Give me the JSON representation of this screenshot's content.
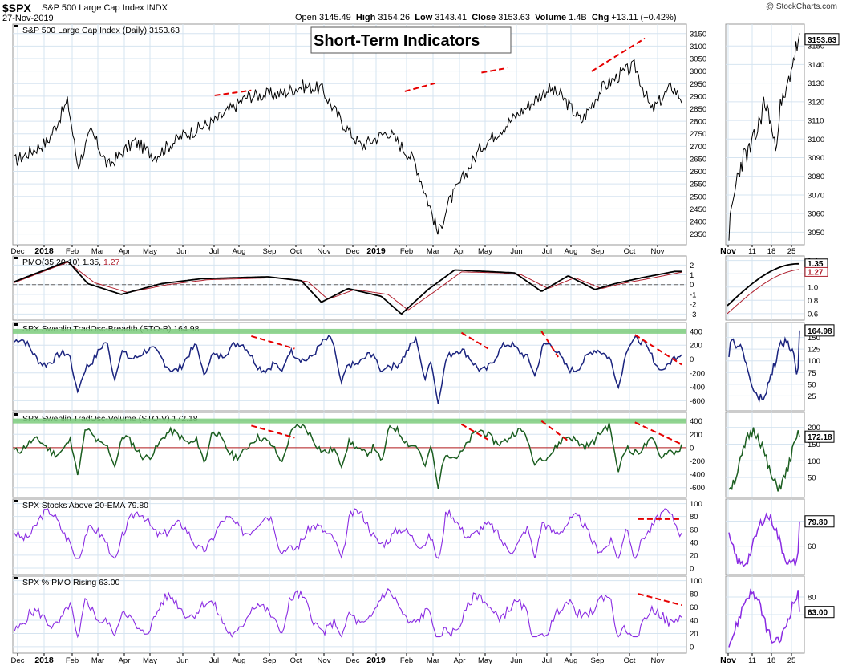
{
  "header": {
    "symbol": "$SPX",
    "name": "S&P 500 Large Cap Index INDX",
    "date": "27-Nov-2019",
    "open_label": "Open",
    "open": "3145.49",
    "high_label": "High",
    "high": "3154.26",
    "low_label": "Low",
    "low": "3143.41",
    "close_label": "Close",
    "close": "3153.63",
    "volume_label": "Volume",
    "volume": "1.4B",
    "chg_label": "Chg",
    "chg": "+13.11 (+0.42%)",
    "watermark": "@ StockCharts.com"
  },
  "overlay_title": "Short-Term Indicators",
  "colors": {
    "grid": "#d6e4f0",
    "price": "#000000",
    "pmo_fast": "#000000",
    "pmo_signal": "#b0202e",
    "breadth": "#1a237e",
    "volume": "#1b5e20",
    "stocks": "#8a2be2",
    "zero_line": "#b71c1c",
    "band": "#7ccd7c",
    "divergence": "#e60000"
  },
  "x_axis": {
    "months": [
      "Dec",
      "2018",
      "Feb",
      "Mar",
      "Apr",
      "May",
      "Jun",
      "Jul",
      "Aug",
      "Sep",
      "Oct",
      "Nov",
      "Dec",
      "2019",
      "Feb",
      "Mar",
      "Apr",
      "May",
      "Jun",
      "Jul",
      "Aug",
      "Sep",
      "Oct",
      "Nov"
    ],
    "side_ticks": [
      "Nov",
      "11",
      "18",
      "25"
    ]
  },
  "chart_data": [
    {
      "type": "line",
      "title": "S&P 500 Large Cap Index (Daily) 3153.63",
      "ylim": [
        2320,
        3175
      ],
      "ticks": [
        "3150",
        "3100",
        "3050",
        "3000",
        "2950",
        "2900",
        "2850",
        "2800",
        "2750",
        "2700",
        "2650",
        "2600",
        "2550",
        "2500",
        "2450",
        "2400",
        "2350"
      ],
      "series": [
        {
          "name": "$SPX",
          "anchors": [
            [
              0,
              2640
            ],
            [
              0.05,
              2720
            ],
            [
              0.08,
              2880
            ],
            [
              0.095,
              2620
            ],
            [
              0.115,
              2760
            ],
            [
              0.14,
              2620
            ],
            [
              0.18,
              2720
            ],
            [
              0.21,
              2660
            ],
            [
              0.25,
              2740
            ],
            [
              0.3,
              2800
            ],
            [
              0.35,
              2900
            ],
            [
              0.4,
              2910
            ],
            [
              0.43,
              2940
            ],
            [
              0.46,
              2930
            ],
            [
              0.49,
              2800
            ],
            [
              0.52,
              2700
            ],
            [
              0.56,
              2760
            ],
            [
              0.6,
              2640
            ],
            [
              0.625,
              2440
            ],
            [
              0.635,
              2350
            ],
            [
              0.65,
              2470
            ],
            [
              0.7,
              2700
            ],
            [
              0.76,
              2840
            ],
            [
              0.8,
              2930
            ],
            [
              0.82,
              2900
            ],
            [
              0.85,
              2800
            ],
            [
              0.88,
              2930
            ],
            [
              0.91,
              2990
            ],
            [
              0.93,
              3020
            ],
            [
              0.955,
              2840
            ],
            [
              0.985,
              2940
            ],
            [
              1.0,
              2890
            ]
          ]
        }
      ],
      "side": {
        "ylim": [
          3045,
          3160
        ],
        "ticks": [
          "3150",
          "3140",
          "3130",
          "3120",
          "3110",
          "3100",
          "3090",
          "3080",
          "3070",
          "3060",
          "3050"
        ],
        "last": "3153.63",
        "anchors": [
          [
            0,
            3050
          ],
          [
            0.06,
            3066
          ],
          [
            0.12,
            3080
          ],
          [
            0.2,
            3090
          ],
          [
            0.3,
            3094
          ],
          [
            0.4,
            3104
          ],
          [
            0.5,
            3120
          ],
          [
            0.58,
            3112
          ],
          [
            0.65,
            3094
          ],
          [
            0.72,
            3116
          ],
          [
            0.8,
            3122
          ],
          [
            0.88,
            3138
          ],
          [
            0.95,
            3148
          ],
          [
            1.0,
            3153.63
          ]
        ]
      },
      "divergences": [
        [
          0.3,
          2903,
          0.355,
          2923
        ],
        [
          0.585,
          2919,
          0.63,
          2951
        ],
        [
          0.7,
          2994,
          0.74,
          3013
        ],
        [
          0.865,
          2999,
          0.945,
          3131
        ]
      ]
    },
    {
      "type": "line",
      "title": "PMO(35,20,10) 1.35,",
      "title2": "1.27",
      "ylim": [
        -3.3,
        2.6
      ],
      "ticks": [
        "2",
        "1",
        "0",
        "-1",
        "-2",
        "-3"
      ],
      "series": [
        {
          "name": "PMO",
          "anchors": [
            [
              0,
              0.3
            ],
            [
              0.08,
              2.4
            ],
            [
              0.11,
              0.1
            ],
            [
              0.16,
              -1.0
            ],
            [
              0.22,
              0.1
            ],
            [
              0.28,
              0.6
            ],
            [
              0.38,
              0.8
            ],
            [
              0.43,
              0.4
            ],
            [
              0.46,
              -1.8
            ],
            [
              0.5,
              -0.4
            ],
            [
              0.55,
              -1.2
            ],
            [
              0.58,
              -3.0
            ],
            [
              0.62,
              -0.5
            ],
            [
              0.66,
              1.5
            ],
            [
              0.72,
              1.3
            ],
            [
              0.75,
              1.2
            ],
            [
              0.79,
              -0.7
            ],
            [
              0.83,
              0.9
            ],
            [
              0.87,
              -0.5
            ],
            [
              0.9,
              0.1
            ],
            [
              0.94,
              0.7
            ],
            [
              0.99,
              1.35
            ],
            [
              1.0,
              1.35
            ]
          ]
        },
        {
          "name": "Signal",
          "anchors": [
            [
              0,
              0.2
            ],
            [
              0.08,
              2.3
            ],
            [
              0.12,
              0.2
            ],
            [
              0.17,
              -0.8
            ],
            [
              0.23,
              0.0
            ],
            [
              0.29,
              0.5
            ],
            [
              0.39,
              0.7
            ],
            [
              0.44,
              0.3
            ],
            [
              0.47,
              -1.5
            ],
            [
              0.51,
              -0.5
            ],
            [
              0.56,
              -1.0
            ],
            [
              0.59,
              -2.6
            ],
            [
              0.63,
              -0.7
            ],
            [
              0.67,
              1.3
            ],
            [
              0.73,
              1.2
            ],
            [
              0.76,
              1.0
            ],
            [
              0.8,
              -0.4
            ],
            [
              0.84,
              0.7
            ],
            [
              0.88,
              -0.4
            ],
            [
              0.91,
              0.1
            ],
            [
              0.95,
              0.6
            ],
            [
              1.0,
              1.27
            ]
          ]
        }
      ],
      "side": {
        "ylim": [
          0.55,
          1.42
        ],
        "ticks": [
          "1.4",
          "1.2",
          "1.0",
          "0.8",
          "0.6"
        ],
        "last": [
          "1.35",
          "1.27"
        ]
      }
    },
    {
      "type": "line",
      "title": "SPX Swenlin TradOsc-Breadth (STO-B) 164.98",
      "ylim": [
        -700,
        480
      ],
      "ticks": [
        "400",
        "200",
        "0",
        "-200",
        "-400",
        "-600"
      ],
      "series": [
        {
          "name": "STO-B",
          "seed": 7,
          "base": 60,
          "amp": 210,
          "valley": [
            [
              0.095,
              -480
            ],
            [
              0.15,
              -320
            ],
            [
              0.285,
              -260
            ],
            [
              0.4,
              -200
            ],
            [
              0.49,
              -350
            ],
            [
              0.55,
              -200
            ],
            [
              0.615,
              -320
            ],
            [
              0.635,
              -650
            ],
            [
              0.78,
              -240
            ],
            [
              0.905,
              -420
            ],
            [
              0.97,
              -160
            ]
          ]
        }
      ],
      "side": {
        "ylim": [
          0,
          175
        ],
        "ticks": [
          "150",
          "125",
          "100",
          "75",
          "50",
          "25"
        ],
        "last": "164.98"
      },
      "divergences": [
        [
          0.355,
          330,
          0.42,
          150
        ],
        [
          0.67,
          380,
          0.71,
          150
        ],
        [
          0.79,
          400,
          0.815,
          30
        ],
        [
          0.93,
          350,
          1.0,
          -80
        ]
      ]
    },
    {
      "type": "line",
      "title": "SPX Swenlin TradOsc-Volume (STO-V) 172.18",
      "ylim": [
        -700,
        480
      ],
      "ticks": [
        "400",
        "200",
        "0",
        "-200",
        "-400",
        "-600"
      ],
      "series": [
        {
          "name": "STO-V",
          "seed": 11,
          "base": 90,
          "amp": 220,
          "valley": [
            [
              0.095,
              -430
            ],
            [
              0.15,
              -300
            ],
            [
              0.285,
              -250
            ],
            [
              0.4,
              -230
            ],
            [
              0.49,
              -300
            ],
            [
              0.55,
              -230
            ],
            [
              0.615,
              -300
            ],
            [
              0.635,
              -620
            ],
            [
              0.78,
              -260
            ],
            [
              0.905,
              -380
            ],
            [
              0.97,
              -170
            ]
          ]
        }
      ],
      "side": {
        "ylim": [
          0,
          235
        ],
        "ticks": [
          "200",
          "150",
          "100",
          "50"
        ],
        "last": "172.18"
      },
      "divergences": [
        [
          0.355,
          330,
          0.42,
          150
        ],
        [
          0.67,
          350,
          0.71,
          120
        ],
        [
          0.79,
          400,
          0.83,
          100
        ],
        [
          0.93,
          380,
          1.0,
          50
        ]
      ]
    },
    {
      "type": "line",
      "title": "SPX Stocks Above 20-EMA 79.80",
      "ylim": [
        -5,
        102
      ],
      "ticks": [
        "100",
        "80",
        "60",
        "40",
        "20",
        "0"
      ],
      "series": [
        {
          "name": "Above 20-EMA",
          "seed": 3,
          "base": 58,
          "amp": 28,
          "valley": [
            [
              0.095,
              5
            ],
            [
              0.15,
              12
            ],
            [
              0.4,
              20
            ],
            [
              0.49,
              15
            ],
            [
              0.635,
              3
            ],
            [
              0.78,
              12
            ],
            [
              0.905,
              8
            ],
            [
              0.93,
              10
            ]
          ]
        }
      ],
      "side": {
        "ylim": [
          40,
          95
        ],
        "ticks": [
          "80",
          "60"
        ],
        "last": "79.80"
      },
      "divergences": [
        [
          0.935,
          76,
          1.0,
          76
        ]
      ]
    },
    {
      "type": "line",
      "title": "SPX % PMO Rising 63.00",
      "ylim": [
        -5,
        102
      ],
      "ticks": [
        "100",
        "80",
        "60",
        "40",
        "20",
        "0"
      ],
      "series": [
        {
          "name": "% PMO Rising",
          "seed": 5,
          "base": 50,
          "amp": 30,
          "valley": [
            [
              0.095,
              5
            ],
            [
              0.15,
              15
            ],
            [
              0.4,
              18
            ],
            [
              0.49,
              12
            ],
            [
              0.635,
              3
            ],
            [
              0.78,
              10
            ],
            [
              0.905,
              12
            ],
            [
              0.93,
              8
            ]
          ]
        }
      ],
      "side": {
        "ylim": [
          20,
          100
        ],
        "ticks": [
          "80",
          "60"
        ],
        "last": "63.00"
      },
      "divergences": [
        [
          0.935,
          80,
          1.0,
          63
        ]
      ]
    }
  ]
}
